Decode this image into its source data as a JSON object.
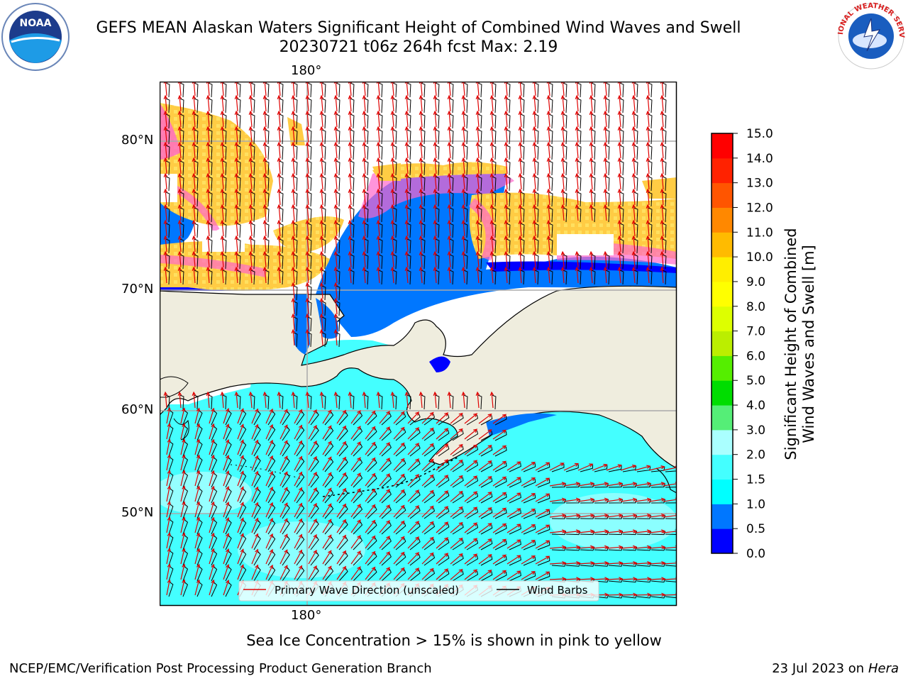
{
  "header": {
    "title_line1": "GEFS MEAN Alaskan Waters Significant Height of Combined Wind Waves and Swell",
    "title_line2": "20230721 t06z 264h fcst   Max: 2.19",
    "logo_left_text": "NOAA",
    "logo_right_text": "NATIONAL WEATHER SERVICE"
  },
  "map": {
    "lon_label_top": "180°",
    "lon_label_bottom": "180°",
    "lat_labels": [
      "80°N",
      "70°N",
      "60°N",
      "50°N"
    ],
    "legend": {
      "wave_label": "Primary Wave Direction (unscaled)",
      "wind_label": "Wind Barbs",
      "wave_color": "#e00000",
      "wind_color": "#000000"
    },
    "colors": {
      "land": "#efedde",
      "ocean_shallow": "#44ffff",
      "ice_pink": "#ff66cc",
      "ice_yellow": "#ffcc44"
    }
  },
  "colorbar": {
    "title_line1": "Significant Height of Combined",
    "title_line2": "Wind Waves and Swell [m]",
    "ticks": [
      "0.0",
      "0.5",
      "1.0",
      "1.5",
      "2.0",
      "3.0",
      "4.0",
      "5.0",
      "6.0",
      "7.0",
      "8.0",
      "9.0",
      "10.0",
      "11.0",
      "12.0",
      "13.0",
      "14.0",
      "15.0"
    ],
    "colors": [
      "#0000ff",
      "#0077ff",
      "#00ffff",
      "#44ffff",
      "#aaffff",
      "#55ee77",
      "#00dd00",
      "#55ee00",
      "#bbee00",
      "#ddff00",
      "#ffff00",
      "#ffee00",
      "#ffbb00",
      "#ff8800",
      "#ff5500",
      "#ff2200",
      "#ff0000"
    ]
  },
  "footer": {
    "note": "Sea Ice Concentration > 15% is shown in pink to yellow",
    "left": "NCEP/EMC/Verification Post Processing Product Generation Branch",
    "right_prefix": "23 Jul 2023 on ",
    "right_machine": "Hera"
  }
}
